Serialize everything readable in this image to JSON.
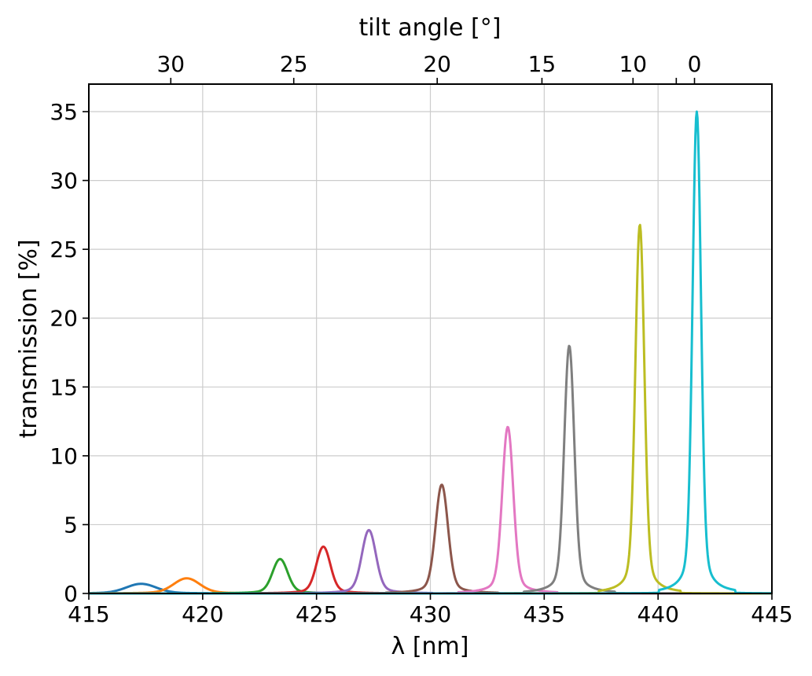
{
  "chart_data": {
    "type": "line",
    "title": "",
    "xlabel": "λ [nm]",
    "xlabel_top": "tilt angle [°]",
    "ylabel": "transmission [%]",
    "xlim": [
      415,
      445
    ],
    "ylim": [
      0,
      37
    ],
    "grid": true,
    "x_ticks": [
      415,
      420,
      425,
      430,
      435,
      440,
      445
    ],
    "y_ticks": [
      0,
      5,
      10,
      15,
      20,
      25,
      30,
      35
    ],
    "top_ticks": [
      {
        "label": "30",
        "wavelength": 418.6
      },
      {
        "label": "25",
        "wavelength": 424.0
      },
      {
        "label": "20",
        "wavelength": 430.3
      },
      {
        "label": "15",
        "wavelength": 434.9
      },
      {
        "label": "10",
        "wavelength": 438.9
      },
      {
        "label": "",
        "wavelength": 440.8
      },
      {
        "label": "0",
        "wavelength": 441.6
      }
    ],
    "series": [
      {
        "color": "#1f77b4",
        "peak_wavelength": 417.3,
        "peak_transmission": 0.7,
        "width_nm": 1.5
      },
      {
        "color": "#ff7f0e",
        "peak_wavelength": 419.3,
        "peak_transmission": 1.1,
        "width_nm": 1.3
      },
      {
        "color": "#2ca02c",
        "peak_wavelength": 423.4,
        "peak_transmission": 2.5,
        "width_nm": 0.75
      },
      {
        "color": "#d62728",
        "peak_wavelength": 425.3,
        "peak_transmission": 3.4,
        "width_nm": 0.7
      },
      {
        "color": "#9467bd",
        "peak_wavelength": 427.3,
        "peak_transmission": 4.6,
        "width_nm": 0.7
      },
      {
        "color": "#8c564b",
        "peak_wavelength": 430.5,
        "peak_transmission": 7.9,
        "width_nm": 0.62
      },
      {
        "color": "#e377c2",
        "peak_wavelength": 433.4,
        "peak_transmission": 12.1,
        "width_nm": 0.55
      },
      {
        "color": "#7f7f7f",
        "peak_wavelength": 436.1,
        "peak_transmission": 18.0,
        "width_nm": 0.5
      },
      {
        "color": "#bcbd22",
        "peak_wavelength": 439.2,
        "peak_transmission": 26.8,
        "width_nm": 0.45
      },
      {
        "color": "#17becf",
        "peak_wavelength": 441.7,
        "peak_transmission": 35.0,
        "width_nm": 0.42
      }
    ]
  }
}
